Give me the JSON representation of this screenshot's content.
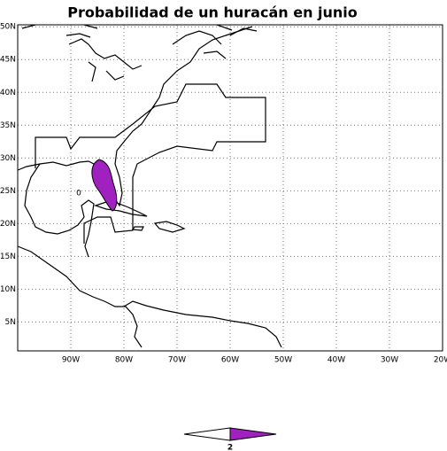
{
  "title": "Probabilidad de un huracán en junio",
  "map": {
    "type": "map",
    "lonlim": [
      -100,
      -20
    ],
    "latlim": [
      0.6,
      50.3
    ],
    "lonticks": [
      {
        "value": -90,
        "label": "90W"
      },
      {
        "value": -80,
        "label": "80W"
      },
      {
        "value": -70,
        "label": "70W"
      },
      {
        "value": -60,
        "label": "60W"
      },
      {
        "value": -50,
        "label": "50W"
      },
      {
        "value": -40,
        "label": "40W"
      },
      {
        "value": -30,
        "label": "30W"
      },
      {
        "value": -20,
        "label": "20W"
      }
    ],
    "latticks": [
      {
        "value": 5,
        "label": "5N"
      },
      {
        "value": 10,
        "label": "10N"
      },
      {
        "value": 15,
        "label": "15N"
      },
      {
        "value": 20,
        "label": "20N"
      },
      {
        "value": 25,
        "label": "25N"
      },
      {
        "value": 30,
        "label": "30N"
      },
      {
        "value": 35,
        "label": "35N"
      },
      {
        "value": 40,
        "label": "40N"
      },
      {
        "value": 45,
        "label": "45N"
      },
      {
        "value": 50,
        "label": "50N"
      }
    ],
    "grid": true,
    "contour_label": "0",
    "colorbar": {
      "colors": [
        "#ffffff",
        "#a020c0"
      ],
      "label": "2"
    }
  }
}
